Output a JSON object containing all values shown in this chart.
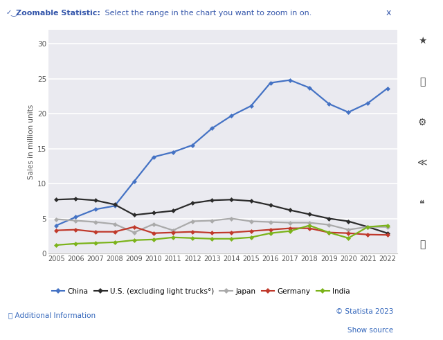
{
  "years": [
    2005,
    2006,
    2007,
    2008,
    2009,
    2010,
    2011,
    2012,
    2013,
    2014,
    2015,
    2016,
    2017,
    2018,
    2019,
    2020,
    2021,
    2022
  ],
  "china": [
    4.0,
    5.2,
    6.3,
    6.8,
    10.3,
    13.8,
    14.5,
    15.5,
    17.9,
    19.7,
    21.1,
    24.4,
    24.8,
    23.7,
    21.4,
    20.2,
    21.5,
    23.6
  ],
  "us": [
    7.7,
    7.8,
    7.6,
    7.0,
    5.5,
    5.8,
    6.1,
    7.2,
    7.6,
    7.7,
    7.5,
    6.9,
    6.2,
    5.6,
    5.0,
    4.6,
    3.8,
    2.9
  ],
  "japan": [
    4.9,
    4.7,
    4.5,
    4.2,
    3.0,
    4.2,
    3.3,
    4.6,
    4.7,
    5.0,
    4.6,
    4.5,
    4.4,
    4.4,
    4.1,
    3.4,
    3.8,
    3.8
  ],
  "germany": [
    3.3,
    3.4,
    3.1,
    3.1,
    3.8,
    2.9,
    3.0,
    3.1,
    2.95,
    3.0,
    3.2,
    3.4,
    3.6,
    3.6,
    3.0,
    2.9,
    2.7,
    2.65
  ],
  "india": [
    1.2,
    1.4,
    1.5,
    1.6,
    1.9,
    2.0,
    2.3,
    2.2,
    2.1,
    2.1,
    2.3,
    2.9,
    3.2,
    4.0,
    3.0,
    2.2,
    3.8,
    4.0
  ],
  "china_color": "#4472c4",
  "us_color": "#2b2b2b",
  "japan_color": "#aaaaaa",
  "germany_color": "#c0392b",
  "india_color": "#7bb31a",
  "ylabel": "Sales in million units",
  "ylim": [
    0,
    32
  ],
  "yticks": [
    0,
    5,
    10,
    15,
    20,
    25,
    30
  ],
  "background_color": "#ffffff",
  "plot_bg_color": "#eaeaf0",
  "header_bg": "#dce6f5",
  "header_text_bold": "Zoomable Statistic:",
  "header_text_normal": " Select the range in the chart you want to zoom in on.",
  "header_color": "#3355aa",
  "footer_text1": "© Statista 2023",
  "footer_text2": "Show source",
  "legend_labels": [
    "China",
    "U.S. (excluding light trucks°)",
    "Japan",
    "Germany",
    "India"
  ],
  "sidebar_icons": [
    "★",
    "🔔",
    "⚙",
    "<",
    "““",
    "🖨"
  ],
  "sidebar_bg": "#f5f5f5"
}
